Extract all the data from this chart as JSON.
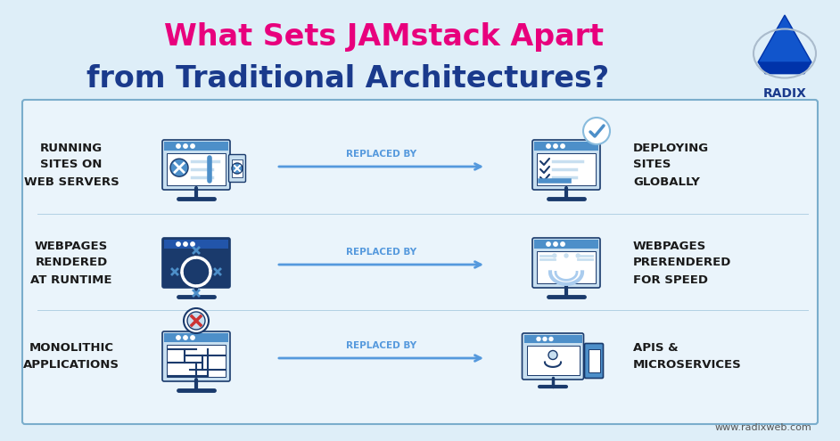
{
  "title_line1": "What Sets JAMstack Apart",
  "title_line2": "from Traditional Architectures?",
  "title_color_highlight": "#E8007D",
  "title_color_main": "#1a3a8c",
  "bg_color": "#deeef8",
  "box_bg": "#eaf4fb",
  "box_border": "#7aadcc",
  "rows": [
    {
      "left_label": "RUNNING\nSITES ON\nWEB SERVERS",
      "right_label": "DEPLOYING\nSITES\nGLOBALLY",
      "arrow_label": "REPLACED BY"
    },
    {
      "left_label": "WEBPAGES\nRENDERED\nAT RUNTIME",
      "right_label": "WEBPAGES\nPRERENDERED\nFOR SPEED",
      "arrow_label": "REPLACED BY"
    },
    {
      "left_label": "MONOLITHIC\nAPPLICATIONS",
      "right_label": "APIS &\nMICROSERVICES",
      "arrow_label": "REPLACED BY"
    }
  ],
  "label_color": "#1a1a1a",
  "arrow_color": "#5599dd",
  "arrow_label_color": "#5599dd",
  "website": "www.radixweb.com",
  "radix_text": "RADIX",
  "radix_color": "#1a3a8c",
  "icon_blue": "#4d8fc9",
  "icon_light": "#c8dff0",
  "icon_dark": "#1a3a6c",
  "icon_red": "#cc3333"
}
